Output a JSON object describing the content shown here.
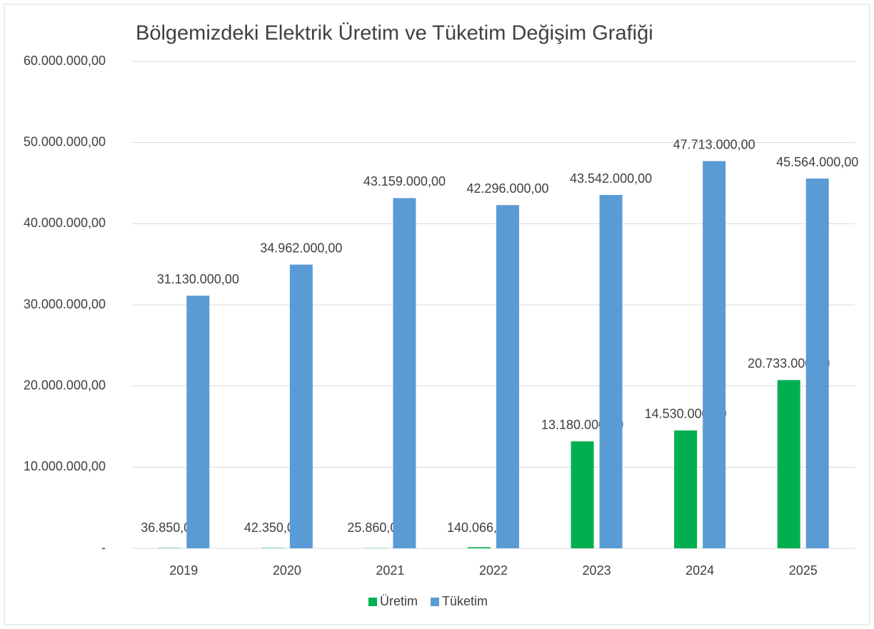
{
  "chart_data": {
    "type": "bar",
    "title": "Bölgemizdeki Elektrik Üretim ve Tüketim Değişim Grafiği",
    "categories": [
      "2019",
      "2020",
      "2021",
      "2022",
      "2023",
      "2024",
      "2025"
    ],
    "series": [
      {
        "name": "Üretim",
        "color": "#00b050",
        "values": [
          36850,
          42350,
          25860,
          140066,
          13180000,
          14530000,
          20733000
        ],
        "value_labels": [
          "36.850,00",
          "42.350,00",
          "25.860,00",
          "140.066,00",
          "13.180.000,00",
          "14.530.000,00",
          "20.733.000,00"
        ]
      },
      {
        "name": "Tüketim",
        "color": "#5b9bd5",
        "values": [
          31130000,
          34962000,
          43159000,
          42296000,
          43542000,
          47713000,
          45564000
        ],
        "value_labels": [
          "31.130.000,00",
          "34.962.000,00",
          "43.159.000,00",
          "42.296.000,00",
          "43.542.000,00",
          "47.713.000,00",
          "45.564.000,00"
        ]
      }
    ],
    "ylim": [
      0,
      60000000
    ],
    "yticks": [
      {
        "value": 0,
        "label": "-"
      },
      {
        "value": 10000000,
        "label": "10.000.000,00"
      },
      {
        "value": 20000000,
        "label": "20.000.000,00"
      },
      {
        "value": 30000000,
        "label": "30.000.000,00"
      },
      {
        "value": 40000000,
        "label": "40.000.000,00"
      },
      {
        "value": 50000000,
        "label": "50.000.000,00"
      },
      {
        "value": 60000000,
        "label": "60.000.000,00"
      }
    ],
    "grid": true,
    "legend": "bottom"
  }
}
